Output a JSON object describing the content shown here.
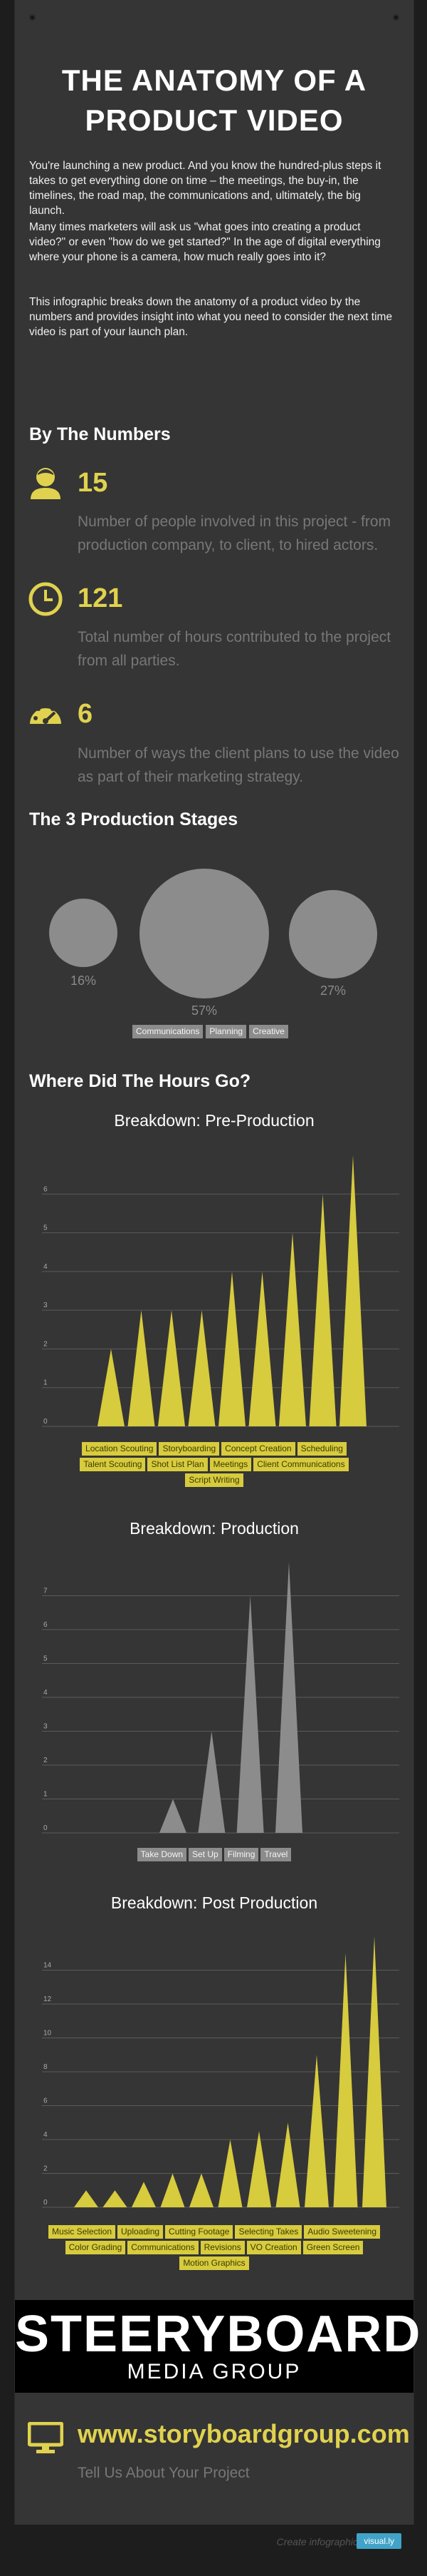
{
  "title_line1": "THE ANATOMY OF A",
  "title_line2": "PRODUCT VIDEO",
  "intro": [
    "You're launching a new product. And you know the hundred-plus steps it takes to get everything done on time – the meetings, the buy-in, the timelines, the road map, the communications and, ultimately, the big launch.",
    "Many times marketers will ask us \"what goes into creating a product video?\" or even \"how do we get started?\" In the age of digital everything where your phone is a camera, how much really goes into it?",
    "This infographic breaks down the anatomy of a product video by the numbers and provides insight into what you need to consider the next time video is part of your launch plan."
  ],
  "numbers_heading": "By The Numbers",
  "stats": [
    {
      "value": "15",
      "text": "Number of people involved in this project - from production company, to client, to hired actors.",
      "icon": "person-icon"
    },
    {
      "value": "121",
      "text": "Total number of hours contributed to the project from all parties.",
      "icon": "clock-icon"
    },
    {
      "value": "6",
      "text": "Number of ways the client plans to use the video as part of their marketing strategy.",
      "icon": "gauge-icon"
    }
  ],
  "stages_heading": "The 3 Production Stages",
  "stages": [
    {
      "name": "Communications",
      "pct_label": "16%",
      "value": 16
    },
    {
      "name": "Planning",
      "pct_label": "57%",
      "value": 57
    },
    {
      "name": "Creative",
      "pct_label": "27%",
      "value": 27
    }
  ],
  "hours_heading": "Where Did The Hours Go?",
  "chart_data": [
    {
      "type": "bar",
      "title": "Breakdown: Pre-Production",
      "ylim": [
        0,
        7
      ],
      "yticks": [
        0,
        1,
        2,
        3,
        4,
        5,
        6
      ],
      "categories": [
        "Location Scouting",
        "Storyboarding",
        "Concept Creation",
        "Scheduling",
        "Talent Scouting",
        "Shot List Plan",
        "Meetings",
        "Client Communications",
        "Script Writing"
      ],
      "values": [
        2,
        3,
        3,
        3,
        4,
        4,
        5,
        6,
        7
      ],
      "color": "#d7cb3e"
    },
    {
      "type": "bar",
      "title": "Breakdown: Production",
      "ylim": [
        0,
        8
      ],
      "yticks": [
        0,
        1,
        2,
        3,
        4,
        5,
        6,
        7
      ],
      "categories": [
        "Take Down",
        "Set Up",
        "Filming",
        "Travel"
      ],
      "values": [
        1,
        3,
        7,
        8
      ],
      "color": "#8c8c8c"
    },
    {
      "type": "bar",
      "title": "Breakdown: Post Production",
      "ylim": [
        0,
        16
      ],
      "yticks": [
        0,
        2,
        4,
        6,
        8,
        10,
        12,
        14
      ],
      "categories": [
        "Music Selection",
        "Uploading",
        "Cutting Footage",
        "Selecting Takes",
        "Audio Sweetening",
        "Color Grading",
        "Communications",
        "Revisions",
        "VO Creation",
        "Green Screen",
        "Motion Graphics"
      ],
      "values": [
        1,
        1,
        1.5,
        2,
        2,
        4,
        4.5,
        5,
        9,
        15,
        16
      ],
      "color": "#d7cb3e"
    }
  ],
  "logo_main": "STEERYBOARD",
  "logo_sub": "MEDIA GROUP",
  "url": "www.storyboardgroup.com",
  "tell": "Tell Us About Your Project",
  "footer_create": "Create infographics",
  "footer_badge": "visual.ly",
  "colors": {
    "accent": "#e0d24e",
    "bar_yellow": "#d7cb3e",
    "bar_gray": "#8c8c8c"
  }
}
